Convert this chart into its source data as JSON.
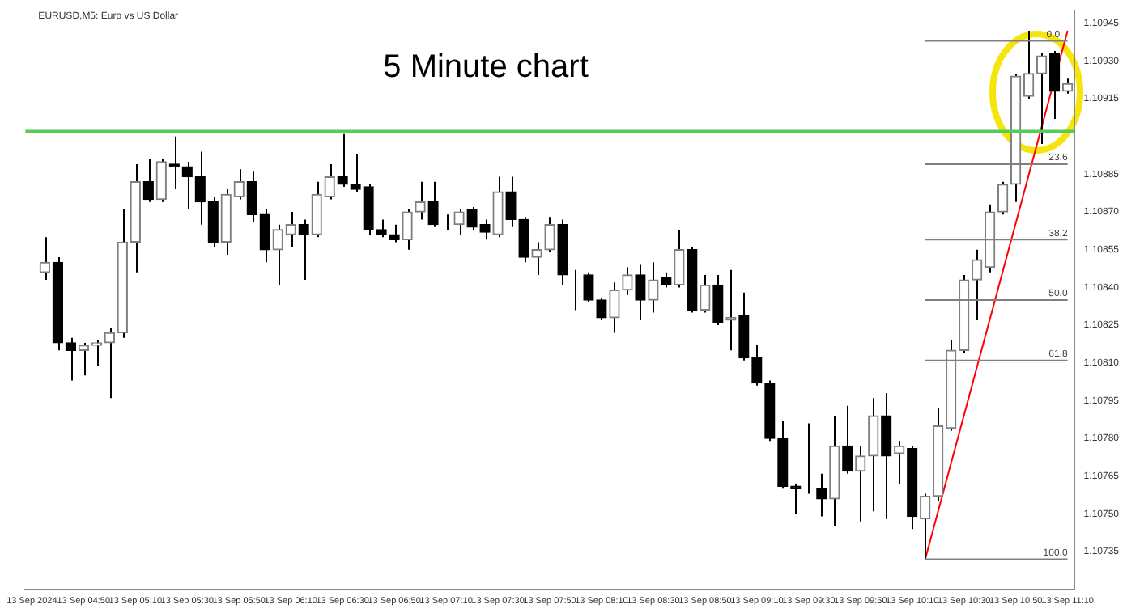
{
  "chart_data": {
    "type": "candlestick",
    "title": "5 Minute chart",
    "subtitle": "EURUSD,M5: Euro vs US Dollar",
    "categories": [
      "13 Sep 2024",
      null,
      null,
      null,
      "13 Sep 04:50",
      null,
      null,
      null,
      "13 Sep 05:10",
      null,
      null,
      null,
      "13 Sep 05:30",
      null,
      null,
      null,
      "13 Sep 05:50",
      null,
      null,
      null,
      "13 Sep 06:10",
      null,
      null,
      null,
      "13 Sep 06:30",
      null,
      null,
      null,
      "13 Sep 06:50",
      null,
      null,
      null,
      "13 Sep 07:10",
      null,
      null,
      null,
      "13 Sep 07:30",
      null,
      null,
      null,
      "13 Sep 07:50",
      null,
      null,
      null,
      "13 Sep 08:10",
      null,
      null,
      null,
      "13 Sep 08:30",
      null,
      null,
      null,
      "13 Sep 08:50",
      null,
      null,
      null,
      "13 Sep 09:10",
      null,
      null,
      null,
      "13 Sep 09:30",
      null,
      null,
      null,
      "13 Sep 09:50",
      null,
      null,
      null,
      "13 Sep 10:10",
      null,
      null,
      null,
      "13 Sep 10:30",
      null,
      null,
      null,
      "13 Sep 10:50",
      null,
      null,
      null,
      "13 Sep 11:10"
    ],
    "series": [
      {
        "type": "candlestick",
        "color": "#000000",
        "colors": [
          null,
          "#808080",
          "#000000",
          "#000000",
          "#808080",
          "#808080",
          "#808080",
          "#808080",
          "#808080",
          "#000000",
          "#808080",
          "#000000",
          "#000000",
          "#000000",
          "#000000",
          "#808080",
          "#808080",
          "#000000",
          "#000000",
          "#808080",
          "#808080",
          "#000000",
          "#808080",
          "#808080",
          "#000000",
          "#000000",
          "#000000",
          "#000000",
          "#000000",
          "#808080",
          "#808080",
          "#000000",
          "#808080",
          "#808080",
          "#000000",
          "#000000",
          "#808080",
          "#000000",
          "#000000",
          "#808080",
          "#808080",
          "#000000",
          "#808080",
          "#000000",
          "#000000",
          "#808080",
          "#808080",
          "#000000",
          "#808080",
          "#000000",
          "#808080",
          "#000000",
          "#808080",
          "#000000",
          "#808080",
          "#000000",
          "#000000",
          "#000000",
          "#000000",
          "#000000",
          "#808080",
          "#000000",
          "#808080",
          "#000000",
          "#808080",
          "#808080",
          "#000000",
          "#808080",
          "#000000",
          "#808080",
          "#808080",
          "#808080",
          "#808080",
          "#808080",
          "#808080",
          "#808080",
          "#808080",
          "#808080",
          "#808080",
          "#000000",
          "#808080"
        ],
        "ohlc": [
          null,
          [
            1.10846,
            1.1086,
            1.10843,
            1.1085
          ],
          [
            1.1085,
            1.10852,
            1.10815,
            1.10818
          ],
          [
            1.10818,
            1.1082,
            1.10803,
            1.10815
          ],
          [
            1.10815,
            1.10818,
            1.10805,
            1.10817
          ],
          [
            1.10817,
            1.10819,
            1.10809,
            1.10818
          ],
          [
            1.10818,
            1.10824,
            1.10796,
            1.10822
          ],
          [
            1.10822,
            1.10871,
            1.1082,
            1.10858
          ],
          [
            1.10858,
            1.10889,
            1.10846,
            1.10882
          ],
          [
            1.10882,
            1.10891,
            1.10874,
            1.10875
          ],
          [
            1.10875,
            1.10891,
            1.10874,
            1.1089
          ],
          [
            1.10889,
            1.109,
            1.10879,
            1.10888
          ],
          [
            1.10888,
            1.1089,
            1.10871,
            1.10884
          ],
          [
            1.10884,
            1.10894,
            1.10865,
            1.10874
          ],
          [
            1.10874,
            1.10876,
            1.10856,
            1.10858
          ],
          [
            1.10858,
            1.10879,
            1.10853,
            1.10877
          ],
          [
            1.10876,
            1.10887,
            1.10875,
            1.10882
          ],
          [
            1.10882,
            1.10886,
            1.10866,
            1.10869
          ],
          [
            1.10869,
            1.10871,
            1.1085,
            1.10855
          ],
          [
            1.10855,
            1.10865,
            1.10841,
            1.10863
          ],
          [
            1.10861,
            1.1087,
            1.10856,
            1.10865
          ],
          [
            1.10865,
            1.10867,
            1.10843,
            1.10861
          ],
          [
            1.10861,
            1.10882,
            1.1086,
            1.10877
          ],
          [
            1.10876,
            1.10889,
            1.10875,
            1.10884
          ],
          [
            1.10884,
            1.10901,
            1.1088,
            1.10881
          ],
          [
            1.10881,
            1.10893,
            1.10878,
            1.10879
          ],
          [
            1.1088,
            1.10881,
            1.10861,
            1.10863
          ],
          [
            1.10863,
            1.10867,
            1.1086,
            1.10861
          ],
          [
            1.10861,
            1.10865,
            1.10858,
            1.10859
          ],
          [
            1.10859,
            1.10871,
            1.10855,
            1.1087
          ],
          [
            1.1087,
            1.10882,
            1.10867,
            1.10874
          ],
          [
            1.10874,
            1.10882,
            1.10864,
            1.10865
          ],
          [
            1.10866,
            1.10869,
            1.10863,
            1.10866
          ],
          [
            1.10865,
            1.10871,
            1.10861,
            1.1087
          ],
          [
            1.10871,
            1.10872,
            1.10863,
            1.10864
          ],
          [
            1.10865,
            1.10867,
            1.10859,
            1.10862
          ],
          [
            1.10861,
            1.10884,
            1.1086,
            1.10878
          ],
          [
            1.10878,
            1.10884,
            1.10864,
            1.10867
          ],
          [
            1.10867,
            1.10868,
            1.1085,
            1.10852
          ],
          [
            1.10852,
            1.10858,
            1.10845,
            1.10855
          ],
          [
            1.10855,
            1.10868,
            1.10854,
            1.10865
          ],
          [
            1.10865,
            1.10867,
            1.10841,
            1.10845
          ],
          [
            1.10845,
            1.10847,
            1.10831,
            1.10845
          ],
          [
            1.10845,
            1.10846,
            1.10834,
            1.10835
          ],
          [
            1.10835,
            1.10836,
            1.10827,
            1.10828
          ],
          [
            1.10828,
            1.10842,
            1.10822,
            1.10839
          ],
          [
            1.10839,
            1.10848,
            1.10837,
            1.10845
          ],
          [
            1.10845,
            1.10849,
            1.10827,
            1.10835
          ],
          [
            1.10835,
            1.1085,
            1.1083,
            1.10843
          ],
          [
            1.10844,
            1.10846,
            1.1084,
            1.10841
          ],
          [
            1.10841,
            1.10863,
            1.1084,
            1.10855
          ],
          [
            1.10855,
            1.10856,
            1.1083,
            1.10831
          ],
          [
            1.10831,
            1.10845,
            1.1083,
            1.10841
          ],
          [
            1.10841,
            1.10845,
            1.10825,
            1.10826
          ],
          [
            1.10827,
            1.10847,
            1.10815,
            1.10828
          ],
          [
            1.10829,
            1.10838,
            1.10811,
            1.10812
          ],
          [
            1.10812,
            1.10817,
            1.10801,
            1.10802
          ],
          [
            1.10802,
            1.10803,
            1.10779,
            1.1078
          ],
          [
            1.1078,
            1.10787,
            1.1076,
            1.10761
          ],
          [
            1.10761,
            1.10762,
            1.1075,
            1.1076
          ],
          [
            1.1076,
            1.10786,
            1.10758,
            1.1076
          ],
          [
            1.1076,
            1.10766,
            1.10749,
            1.10756
          ],
          [
            1.10756,
            1.10789,
            1.10745,
            1.10777
          ],
          [
            1.10777,
            1.10793,
            1.10766,
            1.10767
          ],
          [
            1.10767,
            1.10777,
            1.10747,
            1.10773
          ],
          [
            1.10773,
            1.10796,
            1.10751,
            1.10789
          ],
          [
            1.10789,
            1.10798,
            1.10748,
            1.10773
          ],
          [
            1.10774,
            1.10779,
            1.10762,
            1.10777
          ],
          [
            1.10776,
            1.10777,
            1.10744,
            1.10749
          ],
          [
            1.10748,
            1.10758,
            1.10732,
            1.10757
          ],
          [
            1.10757,
            1.10792,
            1.10755,
            1.10785
          ],
          [
            1.10784,
            1.10819,
            1.10783,
            1.10815
          ],
          [
            1.10815,
            1.10845,
            1.10814,
            1.10843
          ],
          [
            1.10843,
            1.10855,
            1.10827,
            1.10851
          ],
          [
            1.10848,
            1.10873,
            1.10846,
            1.1087
          ],
          [
            1.1087,
            1.10882,
            1.10869,
            1.10881
          ],
          [
            1.10881,
            1.10925,
            1.10874,
            1.10924
          ],
          [
            1.10916,
            1.10942,
            1.10915,
            1.10925
          ],
          [
            1.10925,
            1.10933,
            1.10897,
            1.10932
          ],
          [
            1.10933,
            1.10934,
            1.10907,
            1.10918
          ],
          [
            1.10918,
            1.10923,
            1.10917,
            1.10921
          ]
        ]
      },
      {
        "type": "line",
        "color": "#ff0000",
        "values": [
          null,
          null,
          null,
          null,
          null,
          null,
          null,
          null,
          null,
          null,
          null,
          null,
          null,
          null,
          null,
          null,
          null,
          null,
          null,
          null,
          null,
          null,
          null,
          null,
          null,
          null,
          null,
          null,
          null,
          null,
          null,
          null,
          null,
          null,
          null,
          null,
          null,
          null,
          null,
          null,
          null,
          null,
          null,
          null,
          null,
          null,
          null,
          null,
          null,
          null,
          null,
          null,
          null,
          null,
          null,
          null,
          null,
          null,
          null,
          null,
          null,
          null,
          null,
          null,
          null,
          null,
          null,
          null,
          null,
          1.10732,
          null,
          null,
          null,
          null,
          null,
          null,
          null,
          null,
          null,
          null,
          1.10942
        ]
      }
    ],
    "ylim": [
      1.1072,
      1.1095
    ],
    "yticks": [
      1.10735,
      {
        "value": 1.1075,
        "label": "1.10750"
      },
      1.10765,
      {
        "value": 1.1078,
        "label": "1.10780"
      },
      1.10795,
      {
        "value": 1.1081,
        "label": "1.10810"
      },
      1.10825,
      {
        "value": 1.1084,
        "label": "1.10840"
      },
      1.10855,
      {
        "value": 1.1087,
        "label": "1.10870"
      },
      1.10885,
      1.10915,
      {
        "value": 1.1093,
        "label": "1.10930"
      },
      1.10945
    ],
    "ref_lines": [
      {
        "axis": "y",
        "value": 1.10902,
        "label": null,
        "color": "#55cc55"
      },
      {
        "axis": "y",
        "value": 1.10938,
        "label": null,
        "color": "#808080"
      },
      {
        "axis": "y",
        "value": 1.10889,
        "label": null,
        "color": "#808080"
      },
      {
        "axis": "y",
        "value": 1.10859,
        "label": null,
        "color": "#808080"
      },
      {
        "axis": "y",
        "value": 1.10835,
        "label": null,
        "color": "#808080"
      },
      {
        "axis": "y",
        "value": 1.10811,
        "label": null,
        "color": "#808080"
      },
      {
        "axis": "y",
        "value": 1.10732,
        "label": null,
        "color": "#808080"
      }
    ],
    "annotations": [
      {
        "text": "0.0",
        "x": "13 Sep 11:10",
        "y": 1.10938
      },
      {
        "text": "23.6",
        "x": "13 Sep 11:10",
        "y": 1.10889
      },
      {
        "text": "38.2",
        "x": "13 Sep 11:10",
        "y": 1.10859
      },
      {
        "text": "50.0",
        "x": "13 Sep 11:10",
        "y": 1.10835
      },
      {
        "text": "61.8",
        "x": "13 Sep 11:10",
        "y": 1.10811
      },
      {
        "text": "100.0",
        "x": "13 Sep 11:10",
        "y": 1.10732
      }
    ],
    "grid": false,
    "legend": false
  }
}
